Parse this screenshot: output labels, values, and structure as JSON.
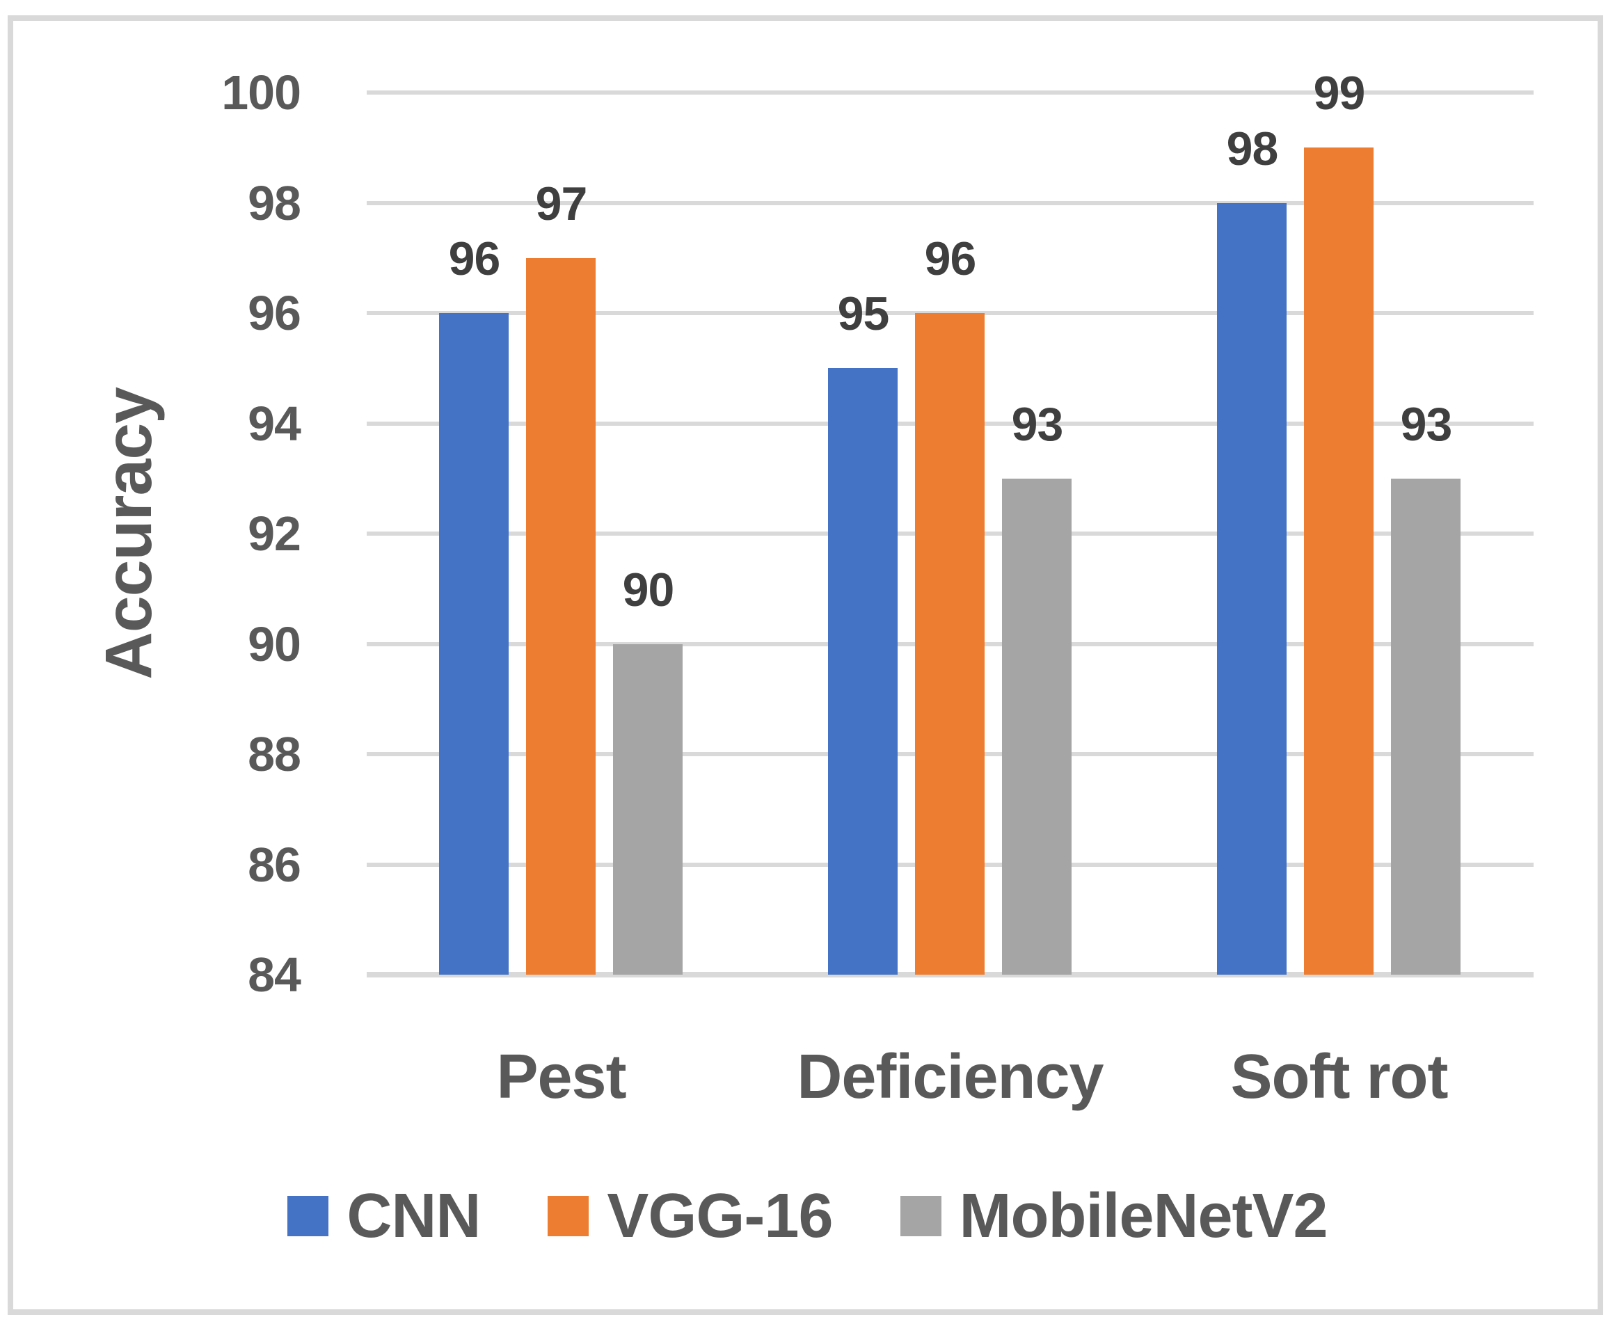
{
  "chart_data": {
    "type": "bar",
    "title": "",
    "xlabel": "",
    "ylabel": "Accuracy",
    "categories": [
      "Pest",
      "Deficiency",
      "Soft rot"
    ],
    "series": [
      {
        "name": "CNN",
        "color": "#4472C4",
        "values": [
          96,
          95,
          98
        ]
      },
      {
        "name": "VGG-16",
        "color": "#ED7D31",
        "values": [
          97,
          96,
          99
        ]
      },
      {
        "name": "MobileNetV2",
        "color": "#A5A5A5",
        "values": [
          90,
          93,
          93
        ]
      }
    ],
    "yticks": [
      84,
      86,
      88,
      90,
      92,
      94,
      96,
      98,
      100
    ],
    "ylim": [
      84,
      100
    ],
    "grid": true,
    "data_labels": true,
    "legend_position": "bottom"
  },
  "colors": {
    "gridline": "#D9D9D9",
    "frame_border": "#D9D9D9",
    "axis_text": "#595959",
    "data_label_text": "#3F3F3F",
    "background": "#FFFFFF"
  }
}
